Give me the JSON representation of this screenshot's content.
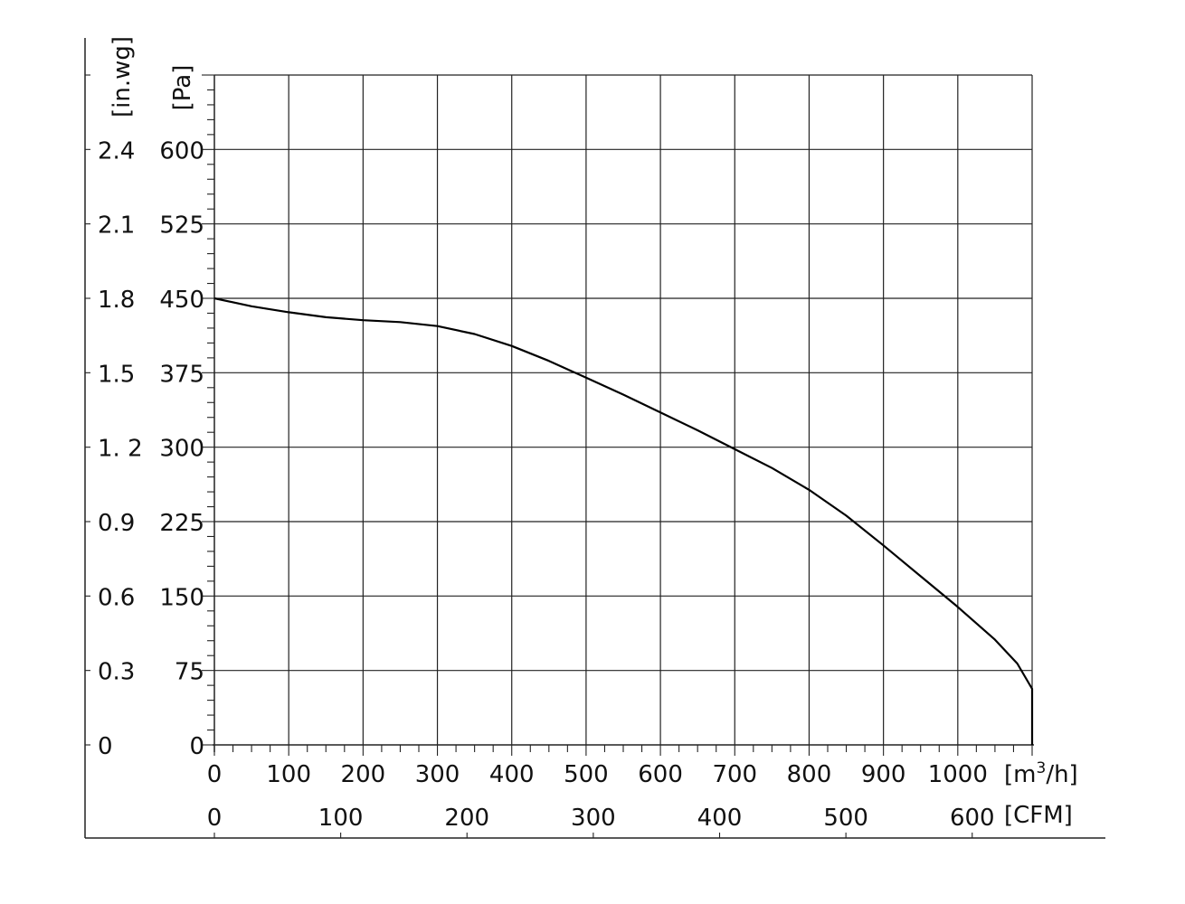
{
  "chart_data": {
    "type": "line",
    "x_axis": {
      "label": "[m³/h]",
      "label_base": "[m",
      "label_sup": "3",
      "label_tail": "/h]",
      "min": 0,
      "max": 1100,
      "major_step": 100,
      "minor_step": 25,
      "ticks": [
        "0",
        "100",
        "200",
        "300",
        "400",
        "500",
        "600",
        "700",
        "800",
        "900",
        "1000"
      ]
    },
    "x_axis_secondary": {
      "label": "[CFM]",
      "ticks": [
        {
          "label": "0",
          "value": 0
        },
        {
          "label": "100",
          "value": 100
        },
        {
          "label": "200",
          "value": 200
        },
        {
          "label": "300",
          "value": 300
        },
        {
          "label": "400",
          "value": 400
        },
        {
          "label": "500",
          "value": 500
        },
        {
          "label": "600",
          "value": 600
        }
      ]
    },
    "y_axis": {
      "label": "[Pa]",
      "min": 0,
      "max": 675,
      "major_step": 75,
      "minor_step": 15,
      "ticks": [
        "0",
        "75",
        "150",
        "225",
        "300",
        "375",
        "450",
        "525",
        "600"
      ]
    },
    "y_axis_secondary": {
      "label": "[in.wg]",
      "ticks": [
        "0",
        "0.3",
        "0.6",
        "0.9",
        "1. 2",
        "1.5",
        "1.8",
        "2.1",
        "2.4"
      ]
    },
    "grid": true,
    "series": [
      {
        "x": [
          0,
          50,
          100,
          150,
          200,
          250,
          300,
          350,
          400,
          450,
          500,
          550,
          600,
          650,
          700,
          750,
          800,
          850,
          900,
          950,
          1000,
          1050,
          1080,
          1100
        ],
        "y": [
          450,
          442,
          436,
          431,
          428,
          426,
          422,
          414,
          402,
          387,
          370,
          353,
          335,
          317,
          298,
          279,
          257,
          231,
          201,
          170,
          139,
          106,
          82,
          56.5
        ]
      }
    ],
    "curve_end": {
      "x": 1100,
      "y": 0
    }
  }
}
